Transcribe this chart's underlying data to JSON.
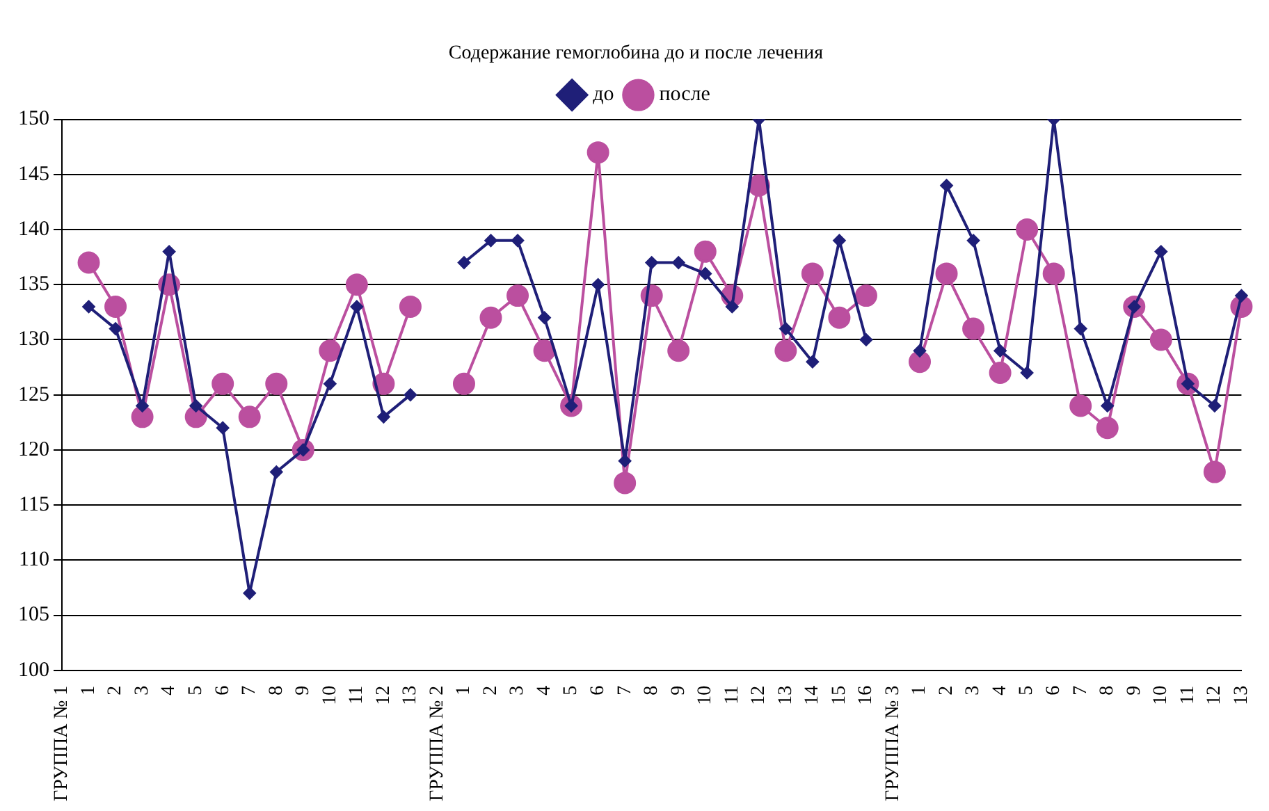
{
  "chart_data": {
    "type": "line",
    "title": "Содержание гемоглобина до и после лечения",
    "categories": [
      "ГРУППА № 1",
      "1",
      "2",
      "3",
      "4",
      "5",
      "6",
      "7",
      "8",
      "9",
      "10",
      "11",
      "12",
      "13",
      "ГРУППА № 2",
      "1",
      "2",
      "3",
      "4",
      "5",
      "6",
      "7",
      "8",
      "9",
      "10",
      "11",
      "12",
      "13",
      "14",
      "15",
      "16",
      "ГРУППА № 3",
      "1",
      "2",
      "3",
      "4",
      "5",
      "6",
      "7",
      "8",
      "9",
      "10",
      "11",
      "12",
      "13"
    ],
    "series": [
      {
        "name": "до",
        "color": "#1f1f78",
        "marker": "diamond",
        "values": [
          null,
          133,
          131,
          124,
          138,
          124,
          122,
          107,
          118,
          120,
          126,
          133,
          123,
          125,
          null,
          137,
          139,
          139,
          132,
          124,
          135,
          119,
          137,
          137,
          136,
          133,
          150,
          131,
          128,
          139,
          130,
          null,
          129,
          144,
          139,
          129,
          127,
          150,
          131,
          124,
          133,
          138,
          126,
          124,
          134
        ]
      },
      {
        "name": "после",
        "color": "#bb4f9f",
        "marker": "circle",
        "values": [
          null,
          137,
          133,
          123,
          135,
          123,
          126,
          123,
          126,
          120,
          129,
          135,
          126,
          133,
          null,
          126,
          132,
          134,
          129,
          124,
          147,
          117,
          134,
          129,
          138,
          134,
          144,
          129,
          136,
          132,
          134,
          null,
          128,
          136,
          131,
          127,
          140,
          136,
          124,
          122,
          133,
          130,
          126,
          118,
          133
        ]
      }
    ],
    "ylim": [
      100,
      150
    ],
    "yticks": [
      100,
      105,
      110,
      115,
      120,
      125,
      130,
      135,
      140,
      145,
      150
    ],
    "grid": "y",
    "legend": "top"
  }
}
